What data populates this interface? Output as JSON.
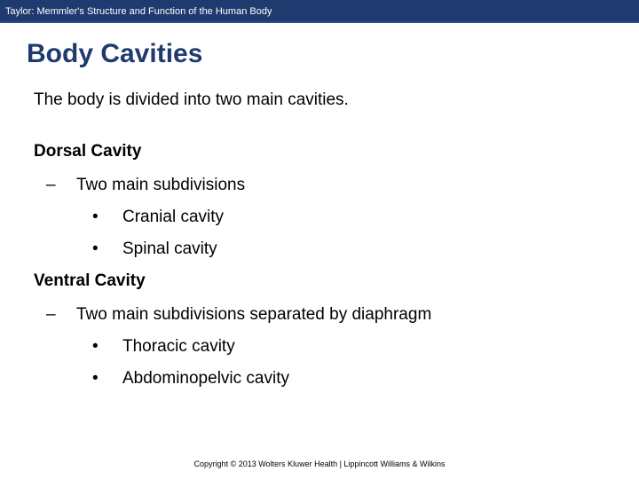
{
  "header": {
    "text": "Taylor: Memmler's Structure and Function of the Human Body"
  },
  "slide": {
    "title": "Body Cavities",
    "intro": "The body is divided into two main cavities.",
    "sections": [
      {
        "heading": "Dorsal Cavity",
        "dash": "Two main subdivisions",
        "bullets": [
          "Cranial cavity",
          "Spinal cavity"
        ]
      },
      {
        "heading": "Ventral Cavity",
        "dash": "Two main subdivisions separated by diaphragm",
        "bullets": [
          "Thoracic cavity",
          "Abdominopelvic cavity"
        ]
      }
    ]
  },
  "footer": {
    "text": "Copyright © 2013 Wolters Kluwer Health | Lippincott Williams & Wilkins"
  },
  "styling": {
    "header_bg": "#1f3a6e",
    "title_color": "#1f3a6e",
    "body_color": "#000000",
    "background": "#ffffff",
    "title_fontsize": 30,
    "body_fontsize": 19,
    "header_fontsize": 11,
    "footer_fontsize": 9,
    "font_family": "Verdana"
  }
}
